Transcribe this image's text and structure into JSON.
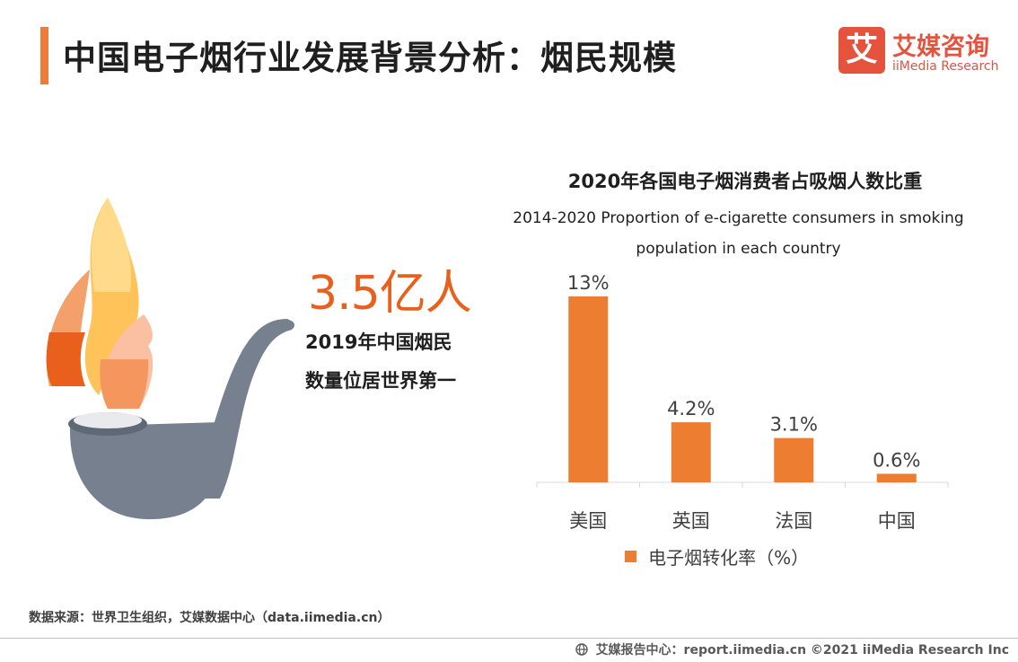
{
  "header": {
    "title": "中国电子烟行业发展背景分析：烟民规模",
    "logo_mark": "艾",
    "logo_cn": "艾媒咨询",
    "logo_en": "iiMedia Research"
  },
  "stat": {
    "value": "3.5亿人",
    "line1": "2019年中国烟民",
    "line2": "数量位居世界第一"
  },
  "chart_data": {
    "type": "bar",
    "title": "2020年各国电子烟消费者占吸烟人数比重",
    "subtitle": "2014-2020 Proportion of e-cigarette consumers in smoking population in each country",
    "categories": [
      "美国",
      "英国",
      "法国",
      "中国"
    ],
    "series": [
      {
        "name": "电子烟转化率（%）",
        "values": [
          13,
          4.2,
          3.1,
          0.6
        ],
        "labels": [
          "13%",
          "4.2%",
          "3.1%",
          "0.6%"
        ],
        "color": "#ed7d31"
      }
    ],
    "ylim": [
      0,
      13
    ],
    "grid": false,
    "legend": "bottom"
  },
  "source": "数据来源：世界卫生组织，艾媒数据中心（data.iimedia.cn）",
  "footer": "艾媒报告中心：report.iimedia.cn  ©2021  iiMedia Research  Inc",
  "colors": {
    "accent": "#ef7b3a",
    "bar": "#ed7d31",
    "brand": "#e5533d",
    "pipe": "#76808e"
  },
  "icons": {
    "footer": "globe-icon",
    "illustration": "pipe-icon"
  }
}
